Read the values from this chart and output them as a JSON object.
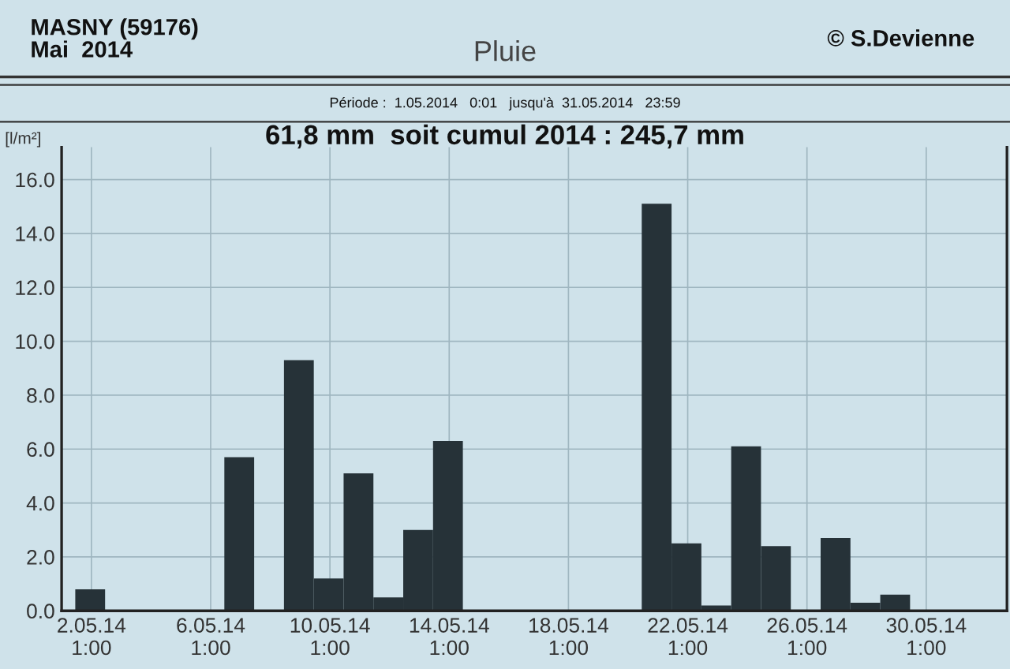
{
  "chart_data": {
    "type": "bar",
    "title": "Pluie",
    "ylabel": "[l/m²]",
    "annotations": [
      "MASNY (59176)\nMai  2014",
      "© S.Devienne",
      "Période :  1.05.2014   0:01   jusqu'à  31.05.2014   23:59",
      "61,8 mm  soit cumul 2014 : 245,7 mm"
    ],
    "x": [
      "2014-05-02",
      "2014-05-07",
      "2014-05-09",
      "2014-05-10",
      "2014-05-11",
      "2014-05-12",
      "2014-05-13",
      "2014-05-14",
      "2014-05-21",
      "2014-05-22",
      "2014-05-23",
      "2014-05-24",
      "2014-05-25",
      "2014-05-27",
      "2014-05-28",
      "2014-05-29"
    ],
    "values": [
      0.8,
      5.7,
      9.3,
      1.2,
      5.1,
      0.5,
      3.0,
      6.3,
      15.1,
      2.5,
      0.2,
      6.1,
      2.4,
      2.7,
      0.3,
      0.6
    ],
    "color": "#263238",
    "xlim": [
      "2014-05-01T01:00",
      "2014-06-01T18:00"
    ],
    "xticks": [
      {
        "value": "2014-05-02T01:00",
        "label": "2.05.14\n1:00"
      },
      {
        "value": "2014-05-06T01:00",
        "label": "6.05.14\n1:00"
      },
      {
        "value": "2014-05-10T01:00",
        "label": "10.05.14\n1:00"
      },
      {
        "value": "2014-05-14T01:00",
        "label": "14.05.14\n1:00"
      },
      {
        "value": "2014-05-18T01:00",
        "label": "18.05.14\n1:00"
      },
      {
        "value": "2014-05-22T01:00",
        "label": "22.05.14\n1:00"
      },
      {
        "value": "2014-05-26T01:00",
        "label": "26.05.14\n1:00"
      },
      {
        "value": "2014-05-30T01:00",
        "label": "30.05.14\n1:00"
      }
    ],
    "ylim": [
      0,
      17.2
    ],
    "yticks": [
      {
        "value": 0,
        "label": "0.0"
      },
      {
        "value": 2,
        "label": "2.0"
      },
      {
        "value": 4,
        "label": "4.0"
      },
      {
        "value": 6,
        "label": "6.0"
      },
      {
        "value": 8,
        "label": "8.0"
      },
      {
        "value": 10,
        "label": "10.0"
      },
      {
        "value": 12,
        "label": "12.0"
      },
      {
        "value": 14,
        "label": "14.0"
      },
      {
        "value": 16,
        "label": "16.0"
      }
    ],
    "grid": true,
    "legend": false
  }
}
